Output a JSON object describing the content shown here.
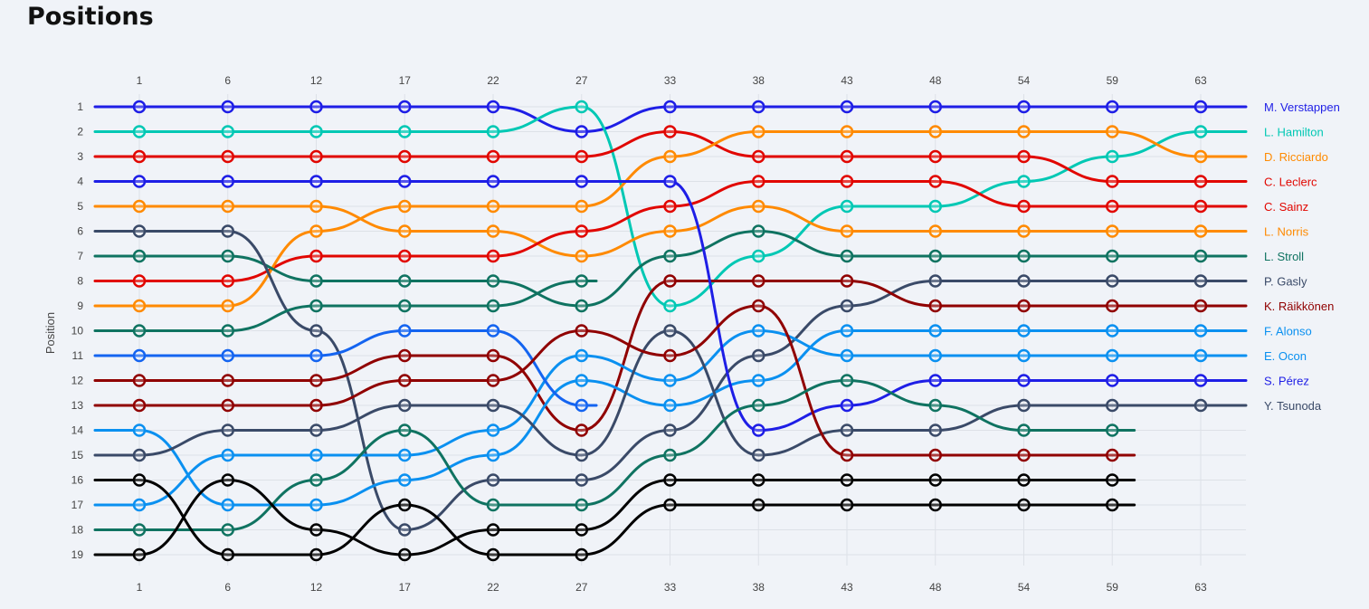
{
  "page": {
    "title": "Positions"
  },
  "chart_data": {
    "type": "line",
    "ylabel": "Position",
    "xlabel": "",
    "x_ticks": [
      1,
      6,
      12,
      17,
      22,
      27,
      33,
      38,
      43,
      48,
      54,
      59,
      63
    ],
    "y_ticks": [
      1,
      2,
      3,
      4,
      5,
      6,
      7,
      8,
      9,
      10,
      11,
      12,
      13,
      14,
      15,
      16,
      17,
      18,
      19
    ],
    "ylim": [
      1,
      19
    ],
    "y_inverted": true,
    "grid": true,
    "legend_position": "right",
    "series": [
      {
        "name": "M. Verstappen",
        "color": "#1e1ee6",
        "x": [
          1,
          6,
          12,
          17,
          22,
          27,
          33,
          38,
          43,
          48,
          54,
          59,
          63
        ],
        "values": [
          1,
          1,
          1,
          1,
          1,
          2,
          1,
          1,
          1,
          1,
          1,
          1,
          1
        ]
      },
      {
        "name": "L. Hamilton",
        "color": "#00c8b4",
        "x": [
          1,
          6,
          12,
          17,
          22,
          27,
          33,
          38,
          43,
          48,
          54,
          59,
          63
        ],
        "values": [
          2,
          2,
          2,
          2,
          2,
          1,
          9,
          7,
          5,
          5,
          4,
          3,
          2
        ]
      },
      {
        "name": "L. Norris",
        "color": "#ff8a00",
        "x": [
          1,
          6,
          12,
          17,
          22,
          27,
          33,
          38,
          43,
          48,
          54,
          59,
          63
        ],
        "values": [
          5,
          5,
          5,
          6,
          6,
          7,
          6,
          5,
          6,
          6,
          6,
          6,
          6
        ]
      },
      {
        "name": "C. Leclerc",
        "color": "#e10600",
        "x": [
          1,
          6,
          12,
          17,
          22,
          27,
          33,
          38,
          43,
          48,
          54,
          59,
          63
        ],
        "values": [
          3,
          3,
          3,
          3,
          3,
          3,
          2,
          3,
          3,
          3,
          3,
          4,
          4
        ]
      },
      {
        "name": "C. Sainz",
        "color": "#e10600",
        "x": [
          1,
          6,
          12,
          17,
          22,
          27,
          33,
          38,
          43,
          48,
          54,
          59,
          63
        ],
        "values": [
          8,
          8,
          7,
          7,
          7,
          6,
          5,
          4,
          4,
          4,
          5,
          5,
          5
        ]
      },
      {
        "name": "D. Ricciardo",
        "color": "#ff8a00",
        "x": [
          1,
          6,
          12,
          17,
          22,
          27,
          33,
          38,
          43,
          48,
          54,
          59,
          63
        ],
        "values": [
          9,
          9,
          6,
          5,
          5,
          5,
          3,
          2,
          2,
          2,
          2,
          2,
          3
        ]
      },
      {
        "name": "L. Stroll",
        "color": "#0f7361",
        "x": [
          1,
          6,
          12,
          17,
          22,
          27,
          33,
          38,
          43,
          48,
          54,
          59,
          63
        ],
        "values": [
          7,
          7,
          8,
          8,
          8,
          9,
          7,
          6,
          7,
          7,
          7,
          7,
          7
        ]
      },
      {
        "name": "P. Gasly",
        "color": "#3a4a68",
        "x": [
          1,
          6,
          12,
          17,
          22,
          27,
          33,
          38,
          43,
          48,
          54,
          59,
          63
        ],
        "values": [
          6,
          6,
          10,
          18,
          16,
          16,
          14,
          11,
          9,
          8,
          8,
          8,
          8
        ]
      },
      {
        "name": "K. Räikkönen",
        "color": "#900000",
        "x": [
          1,
          6,
          12,
          17,
          22,
          27,
          33,
          38,
          43,
          48,
          54,
          59,
          63
        ],
        "values": [
          12,
          12,
          12,
          11,
          11,
          14,
          8,
          8,
          8,
          9,
          9,
          9,
          9
        ]
      },
      {
        "name": "E. Ocon",
        "color": "#0a90f0",
        "x": [
          1,
          6,
          12,
          17,
          22,
          27,
          33,
          38,
          43,
          48,
          54,
          59,
          63
        ],
        "values": [
          17,
          15,
          15,
          15,
          14,
          11,
          12,
          10,
          11,
          11,
          11,
          11,
          11
        ]
      },
      {
        "name": "F. Alonso",
        "color": "#0a90f0",
        "x": [
          1,
          6,
          12,
          17,
          22,
          27,
          33,
          38,
          43,
          48,
          54,
          59,
          63
        ],
        "values": [
          14,
          17,
          17,
          16,
          15,
          12,
          13,
          12,
          10,
          10,
          10,
          10,
          10
        ]
      },
      {
        "name": "S. Pérez",
        "color": "#1e1ee6",
        "x": [
          1,
          6,
          12,
          17,
          22,
          27,
          33,
          38,
          43,
          48,
          54,
          59,
          63
        ],
        "values": [
          4,
          4,
          4,
          4,
          4,
          4,
          4,
          14,
          13,
          12,
          12,
          12,
          12
        ]
      },
      {
        "name": "Y. Tsunoda",
        "color": "#3a4a68",
        "x": [
          1,
          6,
          12,
          17,
          22,
          27,
          33,
          38,
          43,
          48,
          54,
          59,
          63
        ],
        "values": [
          15,
          14,
          14,
          13,
          13,
          15,
          10,
          15,
          14,
          14,
          13,
          13,
          13
        ]
      },
      {
        "name": "",
        "color": "#0f7361",
        "x": [
          1,
          6,
          12,
          17,
          22,
          27,
          28
        ],
        "values": [
          10,
          10,
          9,
          9,
          9,
          8,
          8
        ]
      },
      {
        "name": "",
        "color": "#1464f0",
        "x": [
          1,
          6,
          12,
          17,
          22,
          27,
          28
        ],
        "values": [
          11,
          11,
          11,
          10,
          10,
          13,
          13
        ]
      },
      {
        "name": "",
        "color": "#900000",
        "x": [
          1,
          6,
          12,
          17,
          22,
          27,
          33,
          38,
          43,
          48,
          54,
          59,
          60
        ],
        "values": [
          13,
          13,
          13,
          12,
          12,
          10,
          11,
          9,
          15,
          15,
          15,
          15,
          15
        ]
      },
      {
        "name": "",
        "color": "#0f7361",
        "x": [
          1,
          6,
          12,
          17,
          22,
          27,
          33,
          38,
          43,
          48,
          54,
          59,
          60
        ],
        "values": [
          18,
          18,
          16,
          14,
          17,
          17,
          15,
          13,
          12,
          13,
          14,
          14,
          14
        ]
      },
      {
        "name": "",
        "color": "#000000",
        "x": [
          1,
          6,
          12,
          17,
          22,
          27,
          33,
          38,
          43,
          48,
          54,
          59,
          60
        ],
        "values": [
          16,
          19,
          19,
          17,
          19,
          19,
          17,
          17,
          17,
          17,
          17,
          17,
          17
        ]
      },
      {
        "name": "",
        "color": "#000000",
        "x": [
          1,
          6,
          12,
          17,
          22,
          27,
          33,
          38,
          43,
          48,
          54,
          59,
          60
        ],
        "values": [
          19,
          16,
          18,
          19,
          18,
          18,
          16,
          16,
          16,
          16,
          16,
          16,
          16
        ]
      }
    ]
  }
}
